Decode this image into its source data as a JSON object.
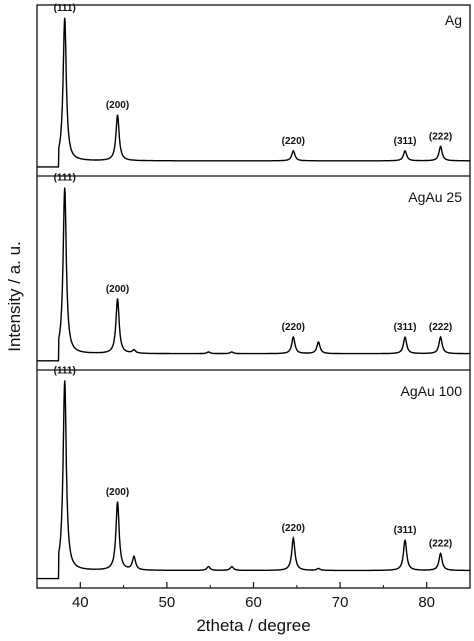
{
  "chart_data": {
    "type": "line",
    "xlabel": "2theta / degree",
    "ylabel": "Intensity / a. u.",
    "xlim": [
      35,
      85
    ],
    "xticks": [
      40,
      50,
      60,
      70,
      80
    ],
    "grid": false,
    "panels": [
      {
        "name": "Ag",
        "baseline": 0.05,
        "peaks": [
          {
            "x": 38.2,
            "height": 1.0,
            "label": "(111)"
          },
          {
            "x": 44.3,
            "height": 0.32,
            "label": "(200)"
          },
          {
            "x": 64.6,
            "height": 0.07,
            "label": "(220)"
          },
          {
            "x": 77.5,
            "height": 0.07,
            "label": "(311)"
          },
          {
            "x": 81.6,
            "height": 0.1,
            "label": "(222)"
          }
        ]
      },
      {
        "name": "AgAu 25",
        "baseline": 0.05,
        "peaks": [
          {
            "x": 38.2,
            "height": 1.0,
            "label": "(111)"
          },
          {
            "x": 44.3,
            "height": 0.33,
            "label": "(200)"
          },
          {
            "x": 46.2,
            "height": 0.02,
            "label": ""
          },
          {
            "x": 54.8,
            "height": 0.01,
            "label": ""
          },
          {
            "x": 57.5,
            "height": 0.01,
            "label": ""
          },
          {
            "x": 64.6,
            "height": 0.1,
            "label": "(220)"
          },
          {
            "x": 67.5,
            "height": 0.07,
            "label": ""
          },
          {
            "x": 77.5,
            "height": 0.1,
            "label": "(311)"
          },
          {
            "x": 81.6,
            "height": 0.1,
            "label": "(222)"
          }
        ]
      },
      {
        "name": "AgAu 100",
        "baseline": 0.05,
        "peaks": [
          {
            "x": 38.2,
            "height": 1.0,
            "label": "(111)"
          },
          {
            "x": 44.3,
            "height": 0.36,
            "label": "(200)"
          },
          {
            "x": 46.2,
            "height": 0.07,
            "label": ""
          },
          {
            "x": 54.8,
            "height": 0.02,
            "label": ""
          },
          {
            "x": 57.5,
            "height": 0.02,
            "label": ""
          },
          {
            "x": 64.6,
            "height": 0.17,
            "label": "(220)"
          },
          {
            "x": 67.5,
            "height": 0.01,
            "label": ""
          },
          {
            "x": 77.5,
            "height": 0.16,
            "label": "(311)"
          },
          {
            "x": 81.6,
            "height": 0.09,
            "label": "(222)"
          }
        ]
      }
    ]
  }
}
